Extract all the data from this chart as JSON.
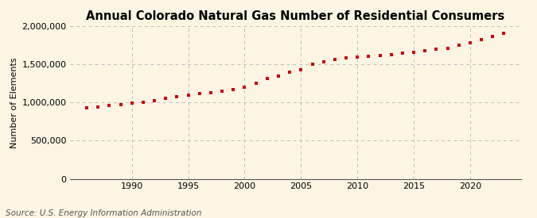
{
  "title": "Annual Colorado Natural Gas Number of Residential Consumers",
  "ylabel": "Number of Elements",
  "source": "Source: U.S. Energy Information Administration",
  "background_color": "#fdf5e4",
  "plot_bg_color": "#fdf5e4",
  "marker_color": "#cc0000",
  "grid_color": "#bbbbbb",
  "years": [
    1986,
    1987,
    1988,
    1989,
    1990,
    1991,
    1992,
    1993,
    1994,
    1995,
    1996,
    1997,
    1998,
    1999,
    2000,
    2001,
    2002,
    2003,
    2004,
    2005,
    2006,
    2007,
    2008,
    2009,
    2010,
    2011,
    2012,
    2013,
    2014,
    2015,
    2016,
    2017,
    2018,
    2019,
    2020,
    2021,
    2022,
    2023
  ],
  "values": [
    930000,
    945000,
    960000,
    975000,
    995000,
    1005000,
    1020000,
    1050000,
    1075000,
    1100000,
    1115000,
    1130000,
    1150000,
    1170000,
    1195000,
    1250000,
    1310000,
    1350000,
    1400000,
    1430000,
    1500000,
    1530000,
    1560000,
    1580000,
    1600000,
    1610000,
    1620000,
    1630000,
    1645000,
    1660000,
    1680000,
    1700000,
    1710000,
    1750000,
    1780000,
    1820000,
    1860000,
    1910000
  ],
  "ylim": [
    0,
    2000000
  ],
  "xlim": [
    1984.5,
    2024.5
  ],
  "yticks": [
    0,
    500000,
    1000000,
    1500000,
    2000000
  ],
  "xticks": [
    1990,
    1995,
    2000,
    2005,
    2010,
    2015,
    2020
  ],
  "title_fontsize": 10.5,
  "label_fontsize": 8,
  "tick_fontsize": 8,
  "source_fontsize": 7.5,
  "marker_size": 3.5
}
